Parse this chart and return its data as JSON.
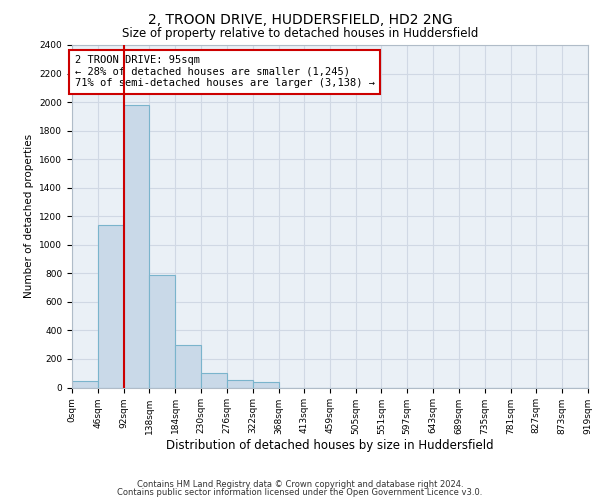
{
  "title": "2, TROON DRIVE, HUDDERSFIELD, HD2 2NG",
  "subtitle": "Size of property relative to detached houses in Huddersfield",
  "xlabel": "Distribution of detached houses by size in Huddersfield",
  "ylabel": "Number of detached properties",
  "bar_edges": [
    0,
    46,
    92,
    138,
    184,
    230,
    276,
    322,
    368,
    413,
    459,
    505,
    551,
    597,
    643,
    689,
    735,
    781,
    827,
    873,
    919
  ],
  "bar_heights": [
    45,
    1140,
    1980,
    790,
    300,
    100,
    50,
    40,
    0,
    0,
    0,
    0,
    0,
    0,
    0,
    0,
    0,
    0,
    0,
    0
  ],
  "bar_color": "#c9d9e8",
  "bar_edgecolor": "#7ab4cc",
  "bar_linewidth": 0.8,
  "vline_x": 92,
  "vline_color": "#cc0000",
  "vline_linewidth": 1.5,
  "ylim": [
    0,
    2400
  ],
  "yticks": [
    0,
    200,
    400,
    600,
    800,
    1000,
    1200,
    1400,
    1600,
    1800,
    2000,
    2200,
    2400
  ],
  "annotation_text": "2 TROON DRIVE: 95sqm\n← 28% of detached houses are smaller (1,245)\n71% of semi-detached houses are larger (3,138) →",
  "box_edgecolor": "#cc0000",
  "grid_color": "#d0d8e4",
  "background_color": "#eaf0f6",
  "footer_line1": "Contains HM Land Registry data © Crown copyright and database right 2024.",
  "footer_line2": "Contains public sector information licensed under the Open Government Licence v3.0.",
  "title_fontsize": 10,
  "subtitle_fontsize": 8.5,
  "xlabel_fontsize": 8.5,
  "ylabel_fontsize": 7.5,
  "tick_fontsize": 6.5,
  "annotation_fontsize": 7.5,
  "footer_fontsize": 6
}
